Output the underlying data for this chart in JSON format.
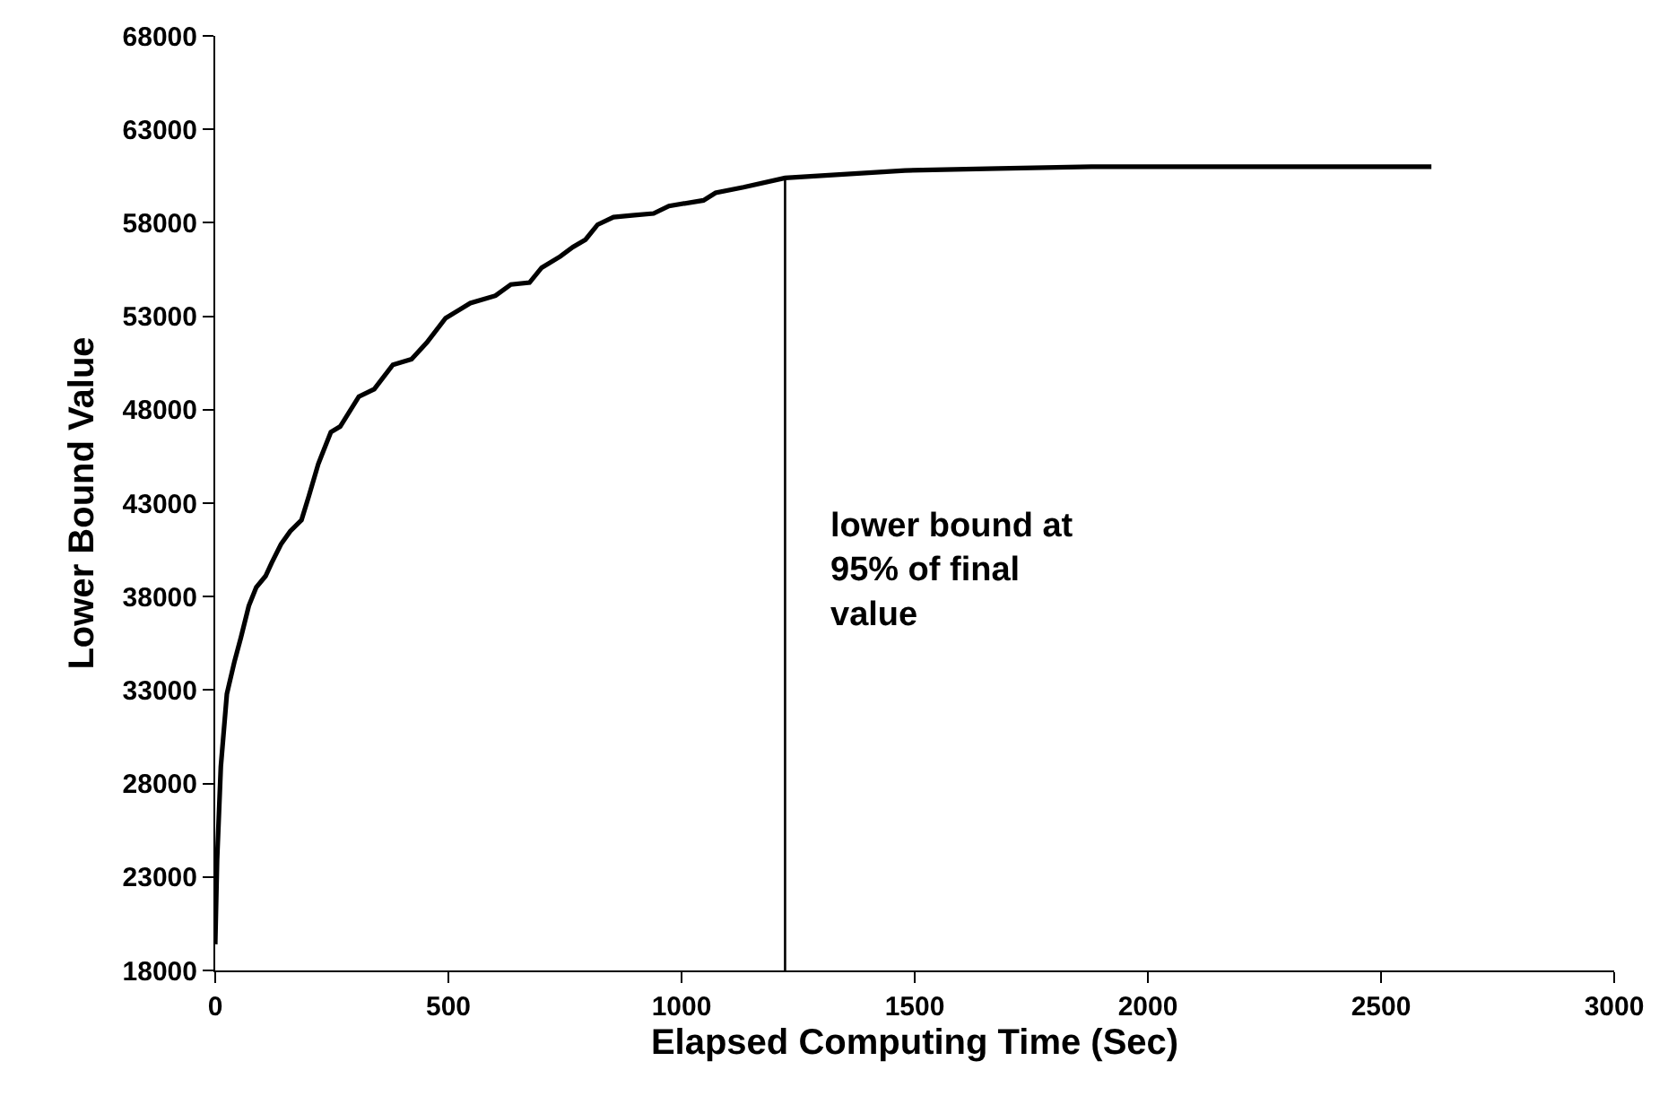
{
  "chart_data": {
    "type": "line",
    "xlabel": "Elapsed Computing Time (Sec)",
    "ylabel": "Lower Bound Value",
    "series": [
      {
        "color": "#000000",
        "x": [
          0,
          4,
          12,
          25,
          41,
          55,
          72,
          88,
          108,
          121,
          141,
          161,
          185,
          201,
          221,
          248,
          268,
          308,
          341,
          381,
          421,
          454,
          494,
          547,
          601,
          634,
          674,
          700,
          740,
          767,
          794,
          820,
          854,
          894,
          940,
          973,
          1047,
          1073,
          1133,
          1222,
          1479,
          1679,
          1879,
          2278,
          2608
        ],
        "values": [
          19400,
          23900,
          28900,
          32800,
          34500,
          35800,
          37500,
          38500,
          39100,
          39800,
          40800,
          41500,
          42100,
          43400,
          45100,
          46800,
          47100,
          48700,
          49100,
          50400,
          50700,
          51600,
          52900,
          53700,
          54100,
          54700,
          54800,
          55600,
          56200,
          56700,
          57100,
          57900,
          58300,
          58400,
          58500,
          58900,
          59200,
          59600,
          59900,
          60400,
          60800,
          60900,
          61000,
          61000,
          61000
        ]
      }
    ],
    "xlim": [
      0,
      3000
    ],
    "xticks": [
      0,
      500,
      1000,
      1500,
      2000,
      2500,
      3000
    ],
    "ylim": [
      18000,
      68000
    ],
    "yticks": [
      18000,
      23000,
      28000,
      33000,
      38000,
      43000,
      48000,
      53000,
      58000,
      63000,
      68000
    ],
    "ref_lines": [
      {
        "axis": "x",
        "value": 1222,
        "label": "lower bound at\n95% of final\nvalue",
        "color": "#000000"
      }
    ],
    "grid": false,
    "marker": "none",
    "line_style": "solid"
  }
}
